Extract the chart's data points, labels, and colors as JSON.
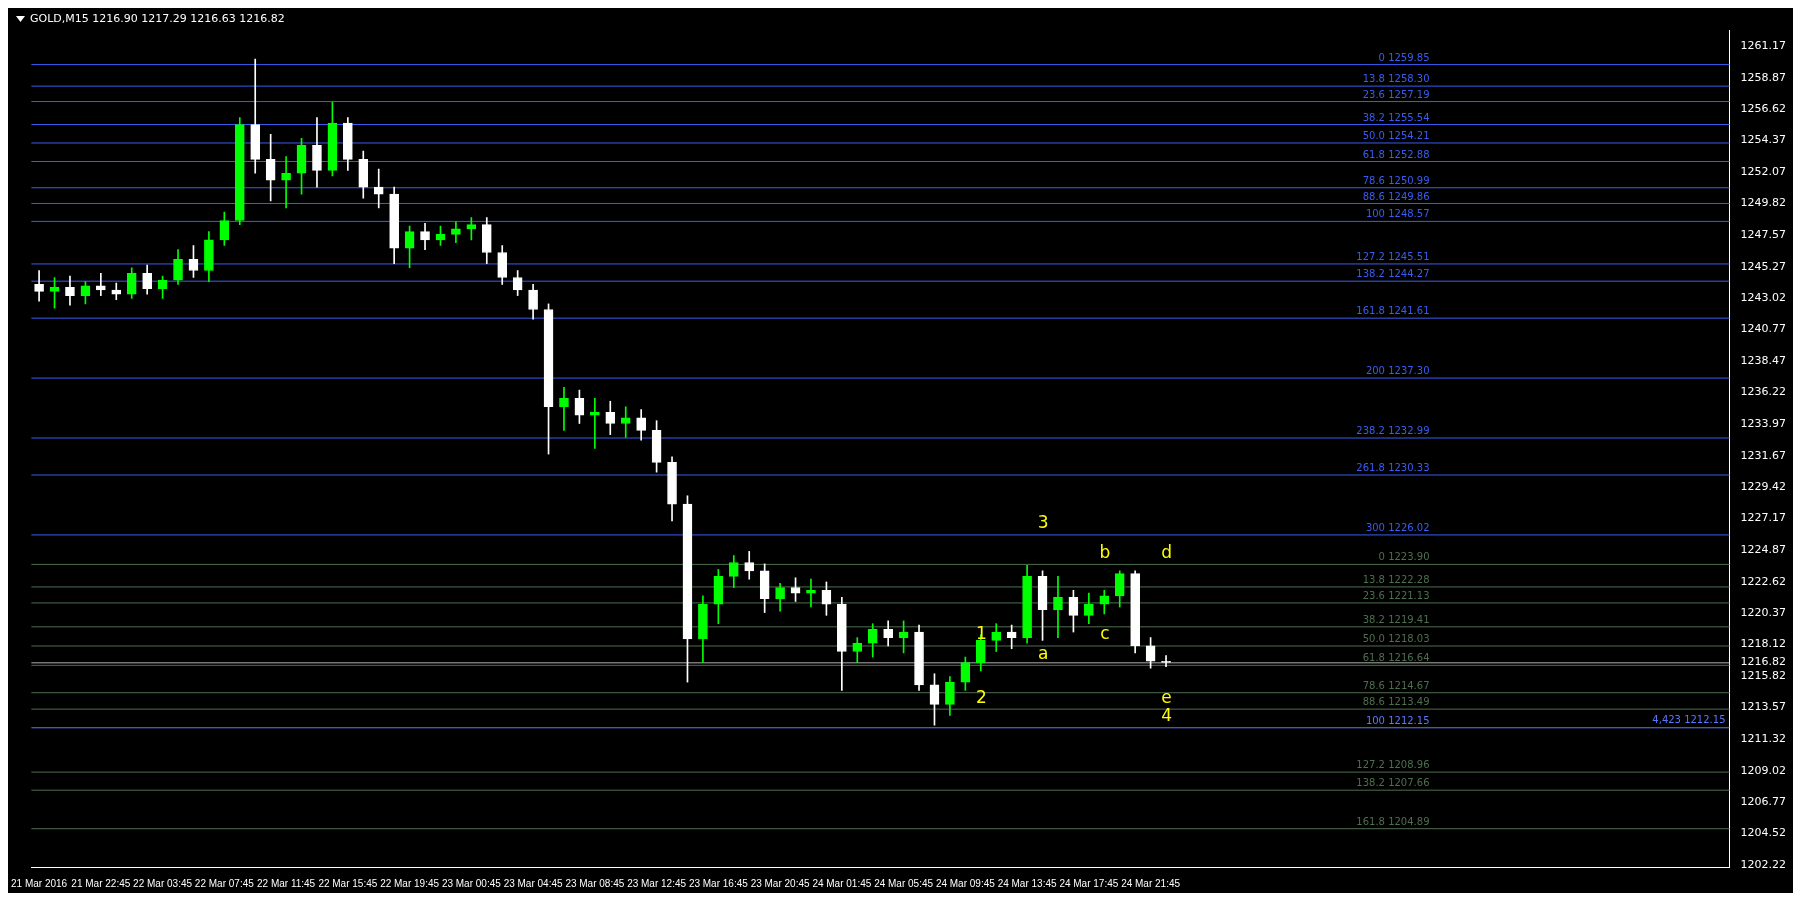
{
  "chart_data": {
    "type": "candlestick",
    "title": "GOLD,M15  1216.90 1217.29 1216.63 1216.82",
    "categories": [
      "21 Mar 2016",
      null,
      null,
      null,
      "21 Mar 22:45",
      null,
      null,
      null,
      "22 Mar 03:45",
      null,
      null,
      null,
      "22 Mar 07:45",
      null,
      null,
      null,
      "22 Mar 11:45",
      null,
      null,
      null,
      "22 Mar 15:45",
      null,
      null,
      null,
      "22 Mar 19:45",
      null,
      null,
      null,
      "23 Mar 00:45",
      null,
      null,
      null,
      "23 Mar 04:45",
      null,
      null,
      null,
      "23 Mar 08:45",
      null,
      null,
      null,
      "23 Mar 12:45",
      null,
      null,
      null,
      "23 Mar 16:45",
      null,
      null,
      null,
      "23 Mar 20:45",
      null,
      null,
      null,
      "24 Mar 01:45",
      null,
      null,
      null,
      "24 Mar 05:45",
      null,
      null,
      null,
      "24 Mar 09:45",
      null,
      null,
      null,
      "24 Mar 13:45",
      null,
      null,
      null,
      "24 Mar 17:45",
      null,
      null,
      null,
      "24 Mar 21:45",
      null,
      null,
      null,
      null,
      null,
      null,
      null,
      null,
      null,
      null,
      null,
      null,
      null,
      null,
      null,
      null,
      null,
      null,
      null,
      null,
      null,
      null,
      null,
      null,
      null,
      null,
      null,
      null,
      null,
      null,
      null,
      null,
      null,
      null,
      null,
      null,
      null
    ],
    "series": [
      {
        "colors": [
          "#ffffff",
          "#00ff00",
          "#ffffff",
          "#00ff00",
          "#ffffff",
          "#ffffff",
          "#00ff00",
          "#ffffff",
          "#00ff00",
          "#00ff00",
          "#ffffff",
          "#00ff00",
          "#00ff00",
          "#00ff00",
          "#ffffff",
          "#ffffff",
          "#00ff00",
          "#00ff00",
          "#ffffff",
          "#00ff00",
          "#ffffff",
          "#ffffff",
          "#ffffff",
          "#ffffff",
          "#00ff00",
          "#ffffff",
          "#00ff00",
          "#00ff00",
          "#00ff00",
          "#ffffff",
          "#ffffff",
          "#ffffff",
          "#ffffff",
          "#ffffff",
          "#00ff00",
          "#ffffff",
          "#00ff00",
          "#ffffff",
          "#00ff00",
          "#ffffff",
          "#ffffff",
          "#ffffff",
          "#ffffff",
          "#00ff00",
          "#00ff00",
          "#00ff00",
          "#ffffff",
          "#ffffff",
          "#00ff00",
          "#ffffff",
          "#00ff00",
          "#ffffff",
          "#ffffff",
          "#00ff00",
          "#00ff00",
          "#ffffff",
          "#00ff00",
          "#ffffff",
          "#ffffff",
          "#00ff00",
          "#00ff00",
          "#00ff00",
          "#00ff00",
          "#ffffff",
          "#00ff00",
          "#ffffff",
          "#00ff00",
          "#ffffff",
          "#00ff00",
          "#00ff00",
          "#00ff00",
          "#ffffff",
          "#ffffff",
          "#ffffff",
          null,
          null,
          null,
          null,
          null,
          null,
          null,
          null,
          null,
          null,
          null,
          null,
          null,
          null,
          null,
          null,
          null,
          null,
          null,
          null,
          null,
          null,
          null,
          null,
          null,
          null,
          null,
          null,
          null,
          null,
          null,
          null,
          null,
          null,
          null,
          null
        ],
        "ohlc": [
          [
            1244.0,
            1245.0,
            1242.8,
            1243.5
          ],
          [
            1243.5,
            1244.5,
            1242.3,
            1243.8
          ],
          [
            1243.8,
            1244.6,
            1242.5,
            1243.2
          ],
          [
            1243.2,
            1244.2,
            1242.6,
            1243.9
          ],
          [
            1243.9,
            1244.8,
            1243.2,
            1243.6
          ],
          [
            1243.6,
            1244.1,
            1242.9,
            1243.3
          ],
          [
            1243.3,
            1245.2,
            1243.0,
            1244.8
          ],
          [
            1244.8,
            1245.4,
            1243.3,
            1243.7
          ],
          [
            1243.7,
            1244.6,
            1243.0,
            1244.3
          ],
          [
            1244.3,
            1246.5,
            1244.0,
            1245.8
          ],
          [
            1245.8,
            1246.8,
            1244.5,
            1245.0
          ],
          [
            1245.0,
            1247.8,
            1244.2,
            1247.2
          ],
          [
            1247.2,
            1249.2,
            1246.8,
            1248.6
          ],
          [
            1248.6,
            1256.0,
            1248.3,
            1255.5
          ],
          [
            1255.5,
            1260.2,
            1252.0,
            1253.0
          ],
          [
            1253.0,
            1254.8,
            1250.0,
            1251.5
          ],
          [
            1251.5,
            1253.2,
            1249.5,
            1252.0
          ],
          [
            1252.0,
            1254.5,
            1250.5,
            1254.0
          ],
          [
            1254.0,
            1256.0,
            1251.0,
            1252.2
          ],
          [
            1252.2,
            1257.1,
            1251.8,
            1255.6
          ],
          [
            1255.6,
            1256.0,
            1252.2,
            1253.0
          ],
          [
            1253.0,
            1253.6,
            1250.2,
            1251.0
          ],
          [
            1251.0,
            1252.3,
            1249.5,
            1250.5
          ],
          [
            1250.5,
            1251.0,
            1245.5,
            1246.6
          ],
          [
            1246.6,
            1248.2,
            1245.2,
            1247.8
          ],
          [
            1247.8,
            1248.4,
            1246.5,
            1247.2
          ],
          [
            1247.2,
            1248.2,
            1246.8,
            1247.6
          ],
          [
            1247.6,
            1248.5,
            1247.0,
            1248.0
          ],
          [
            1248.0,
            1248.8,
            1247.2,
            1248.3
          ],
          [
            1248.3,
            1248.8,
            1245.5,
            1246.3
          ],
          [
            1246.3,
            1246.8,
            1244.0,
            1244.5
          ],
          [
            1244.5,
            1245.0,
            1243.2,
            1243.6
          ],
          [
            1243.6,
            1244.0,
            1241.5,
            1242.2
          ],
          [
            1242.2,
            1242.6,
            1231.8,
            1235.2
          ],
          [
            1235.2,
            1236.6,
            1233.5,
            1235.8
          ],
          [
            1235.8,
            1236.4,
            1234.0,
            1234.6
          ],
          [
            1234.6,
            1235.8,
            1232.2,
            1234.8
          ],
          [
            1234.8,
            1235.6,
            1233.2,
            1234.0
          ],
          [
            1234.0,
            1235.2,
            1233.0,
            1234.4
          ],
          [
            1234.4,
            1235.0,
            1232.8,
            1233.5
          ],
          [
            1233.5,
            1234.2,
            1230.5,
            1231.2
          ],
          [
            1231.2,
            1231.6,
            1227.0,
            1228.2
          ],
          [
            1228.2,
            1228.8,
            1215.4,
            1218.5
          ],
          [
            1218.5,
            1221.6,
            1216.8,
            1221.0
          ],
          [
            1221.0,
            1223.5,
            1219.6,
            1223.0
          ],
          [
            1223.0,
            1224.5,
            1222.2,
            1224.0
          ],
          [
            1224.0,
            1224.8,
            1222.8,
            1223.4
          ],
          [
            1223.4,
            1223.9,
            1220.4,
            1221.4
          ],
          [
            1221.4,
            1222.5,
            1220.5,
            1222.2
          ],
          [
            1222.2,
            1222.9,
            1221.2,
            1221.8
          ],
          [
            1221.8,
            1222.8,
            1220.8,
            1222.0
          ],
          [
            1222.0,
            1222.6,
            1220.2,
            1221.0
          ],
          [
            1221.0,
            1221.5,
            1214.8,
            1217.6
          ],
          [
            1217.6,
            1218.6,
            1216.8,
            1218.2
          ],
          [
            1218.2,
            1219.6,
            1217.2,
            1219.2
          ],
          [
            1219.2,
            1219.8,
            1218.0,
            1218.6
          ],
          [
            1218.6,
            1219.8,
            1217.5,
            1219.0
          ],
          [
            1219.0,
            1219.5,
            1214.8,
            1215.2
          ],
          [
            1215.2,
            1216.0,
            1212.3,
            1213.8
          ],
          [
            1213.8,
            1215.8,
            1213.0,
            1215.4
          ],
          [
            1215.4,
            1217.2,
            1214.8,
            1216.8
          ],
          [
            1216.8,
            1218.8,
            1216.2,
            1218.4
          ],
          [
            1218.4,
            1219.6,
            1217.6,
            1219.0
          ],
          [
            1219.0,
            1219.5,
            1217.8,
            1218.6
          ],
          [
            1218.6,
            1223.8,
            1218.2,
            1223.0
          ],
          [
            1223.0,
            1223.4,
            1218.4,
            1220.6
          ],
          [
            1220.6,
            1223.0,
            1218.6,
            1221.5
          ],
          [
            1221.5,
            1222.0,
            1219.0,
            1220.2
          ],
          [
            1220.2,
            1221.8,
            1219.6,
            1221.0
          ],
          [
            1221.0,
            1222.0,
            1220.3,
            1221.6
          ],
          [
            1221.6,
            1223.4,
            1220.8,
            1223.2
          ],
          [
            1223.2,
            1223.4,
            1217.5,
            1218.0
          ],
          [
            1218.0,
            1218.6,
            1216.4,
            1216.9
          ],
          [
            1216.9,
            1217.3,
            1216.5,
            1216.82
          ],
          null,
          null,
          null,
          null,
          null,
          null,
          null,
          null,
          null,
          null,
          null,
          null,
          null,
          null,
          null,
          null,
          null,
          null,
          null,
          null,
          null,
          null,
          null,
          null,
          null,
          null,
          null,
          null,
          null,
          null,
          null,
          null,
          null,
          null,
          null,
          null
        ]
      }
    ],
    "ylim": [
      1202.1,
      1262.3
    ],
    "yticks": [
      1202.22,
      1204.52,
      1206.77,
      1209.02,
      1211.32,
      1213.57,
      1215.82,
      1216.82,
      1218.12,
      1220.37,
      1222.62,
      1224.87,
      1227.17,
      1229.42,
      1231.67,
      1233.97,
      1236.22,
      1238.47,
      1240.77,
      1243.02,
      1245.27,
      1247.57,
      1249.82,
      1252.07,
      1254.37,
      1256.62,
      1258.87,
      1261.17
    ],
    "grid": false,
    "legend": false,
    "ref_lines": [
      {
        "axis": "y",
        "value": 1259.85,
        "label": "0 1259.85",
        "color": "#3a5cf0"
      },
      {
        "axis": "y",
        "value": 1258.3,
        "label": "13.8 1258.30",
        "color": "#3a5cf0"
      },
      {
        "axis": "y",
        "value": 1257.19,
        "label": "23.6 1257.19",
        "color": "#3a5cf0"
      },
      {
        "axis": "y",
        "value": 1255.54,
        "label": "38.2 1255.54",
        "color": "#3a5cf0"
      },
      {
        "axis": "y",
        "value": 1254.21,
        "label": "50.0 1254.21",
        "color": "#3a5cf0"
      },
      {
        "axis": "y",
        "value": 1252.88,
        "label": "61.8 1252.88",
        "color": "#3a5cf0"
      },
      {
        "axis": "y",
        "value": 1250.99,
        "label": "78.6 1250.99",
        "color": "#3a5cf0"
      },
      {
        "axis": "y",
        "value": 1249.86,
        "label": "88.6 1249.86",
        "color": "#3a5cf0"
      },
      {
        "axis": "y",
        "value": 1248.57,
        "label": "100 1248.57",
        "color": "#3a5cf0"
      },
      {
        "axis": "y",
        "value": 1245.51,
        "label": "127.2 1245.51",
        "color": "#3a5cf0"
      },
      {
        "axis": "y",
        "value": 1244.27,
        "label": "138.2 1244.27",
        "color": "#3a5cf0"
      },
      {
        "axis": "y",
        "value": 1241.61,
        "label": "161.8 1241.61",
        "color": "#3a5cf0"
      },
      {
        "axis": "y",
        "value": 1237.3,
        "label": "200 1237.30",
        "color": "#3a5cf0"
      },
      {
        "axis": "y",
        "value": 1232.99,
        "label": "238.2 1232.99",
        "color": "#3a5cf0"
      },
      {
        "axis": "y",
        "value": 1230.33,
        "label": "261.8 1230.33",
        "color": "#3a5cf0"
      },
      {
        "axis": "y",
        "value": 1226.02,
        "label": "300 1226.02",
        "color": "#3a5cf0"
      },
      {
        "axis": "y",
        "value": 1223.9,
        "label": "0 1223.90",
        "color": "#4e6e4e"
      },
      {
        "axis": "y",
        "value": 1222.28,
        "label": "13.8 1222.28",
        "color": "#4e6e4e"
      },
      {
        "axis": "y",
        "value": 1221.13,
        "label": "23.6 1221.13",
        "color": "#4e6e4e"
      },
      {
        "axis": "y",
        "value": 1219.41,
        "label": "38.2 1219.41",
        "color": "#4e6e4e"
      },
      {
        "axis": "y",
        "value": 1218.03,
        "label": "50.0 1218.03",
        "color": "#4e6e4e"
      },
      {
        "axis": "y",
        "value": 1216.82,
        "color": "#b0b0b0"
      },
      {
        "axis": "y",
        "value": 1216.64,
        "label": "61.8 1216.64",
        "color": "#4e6e4e"
      },
      {
        "axis": "y",
        "value": 1214.67,
        "label": "78.6 1214.67",
        "color": "#4e6e4e"
      },
      {
        "axis": "y",
        "value": 1213.49,
        "label": "88.6 1213.49",
        "color": "#4e6e4e"
      },
      {
        "axis": "y",
        "value": 1212.15,
        "label": "100 1212.15",
        "color": "#5a78ff"
      },
      {
        "axis": "y",
        "value": 1208.96,
        "label": "127.2 1208.96",
        "color": "#4e6e4e"
      },
      {
        "axis": "y",
        "value": 1207.66,
        "label": "138.2 1207.66",
        "color": "#4e6e4e"
      },
      {
        "axis": "y",
        "value": 1204.89,
        "label": "161.8 1204.89",
        "color": "#4e6e4e"
      }
    ],
    "annotations": [
      {
        "text": "4,423 1212.15",
        "y": 1212.15
      },
      {
        "text": "1",
        "x": "24 Mar 09:45",
        "y": 1218.03
      },
      {
        "text": "2",
        "x": "24 Mar 09:45",
        "y": 1213.49
      },
      {
        "text": "3",
        "x": "24 Mar 13:45",
        "y": 1226.02
      },
      {
        "text": "a",
        "x": "24 Mar 13:45",
        "y": 1216.64
      },
      {
        "text": "b",
        "x": "24 Mar 17:45",
        "y": 1223.9
      },
      {
        "text": "c",
        "x": "24 Mar 17:45",
        "y": 1218.03
      },
      {
        "text": "d",
        "x": "24 Mar 21:45",
        "y": 1223.9
      },
      {
        "text": "e",
        "x": "24 Mar 21:45",
        "y": 1213.49
      },
      {
        "text": "4",
        "x": "24 Mar 21:45",
        "y": 1212.15
      }
    ]
  }
}
